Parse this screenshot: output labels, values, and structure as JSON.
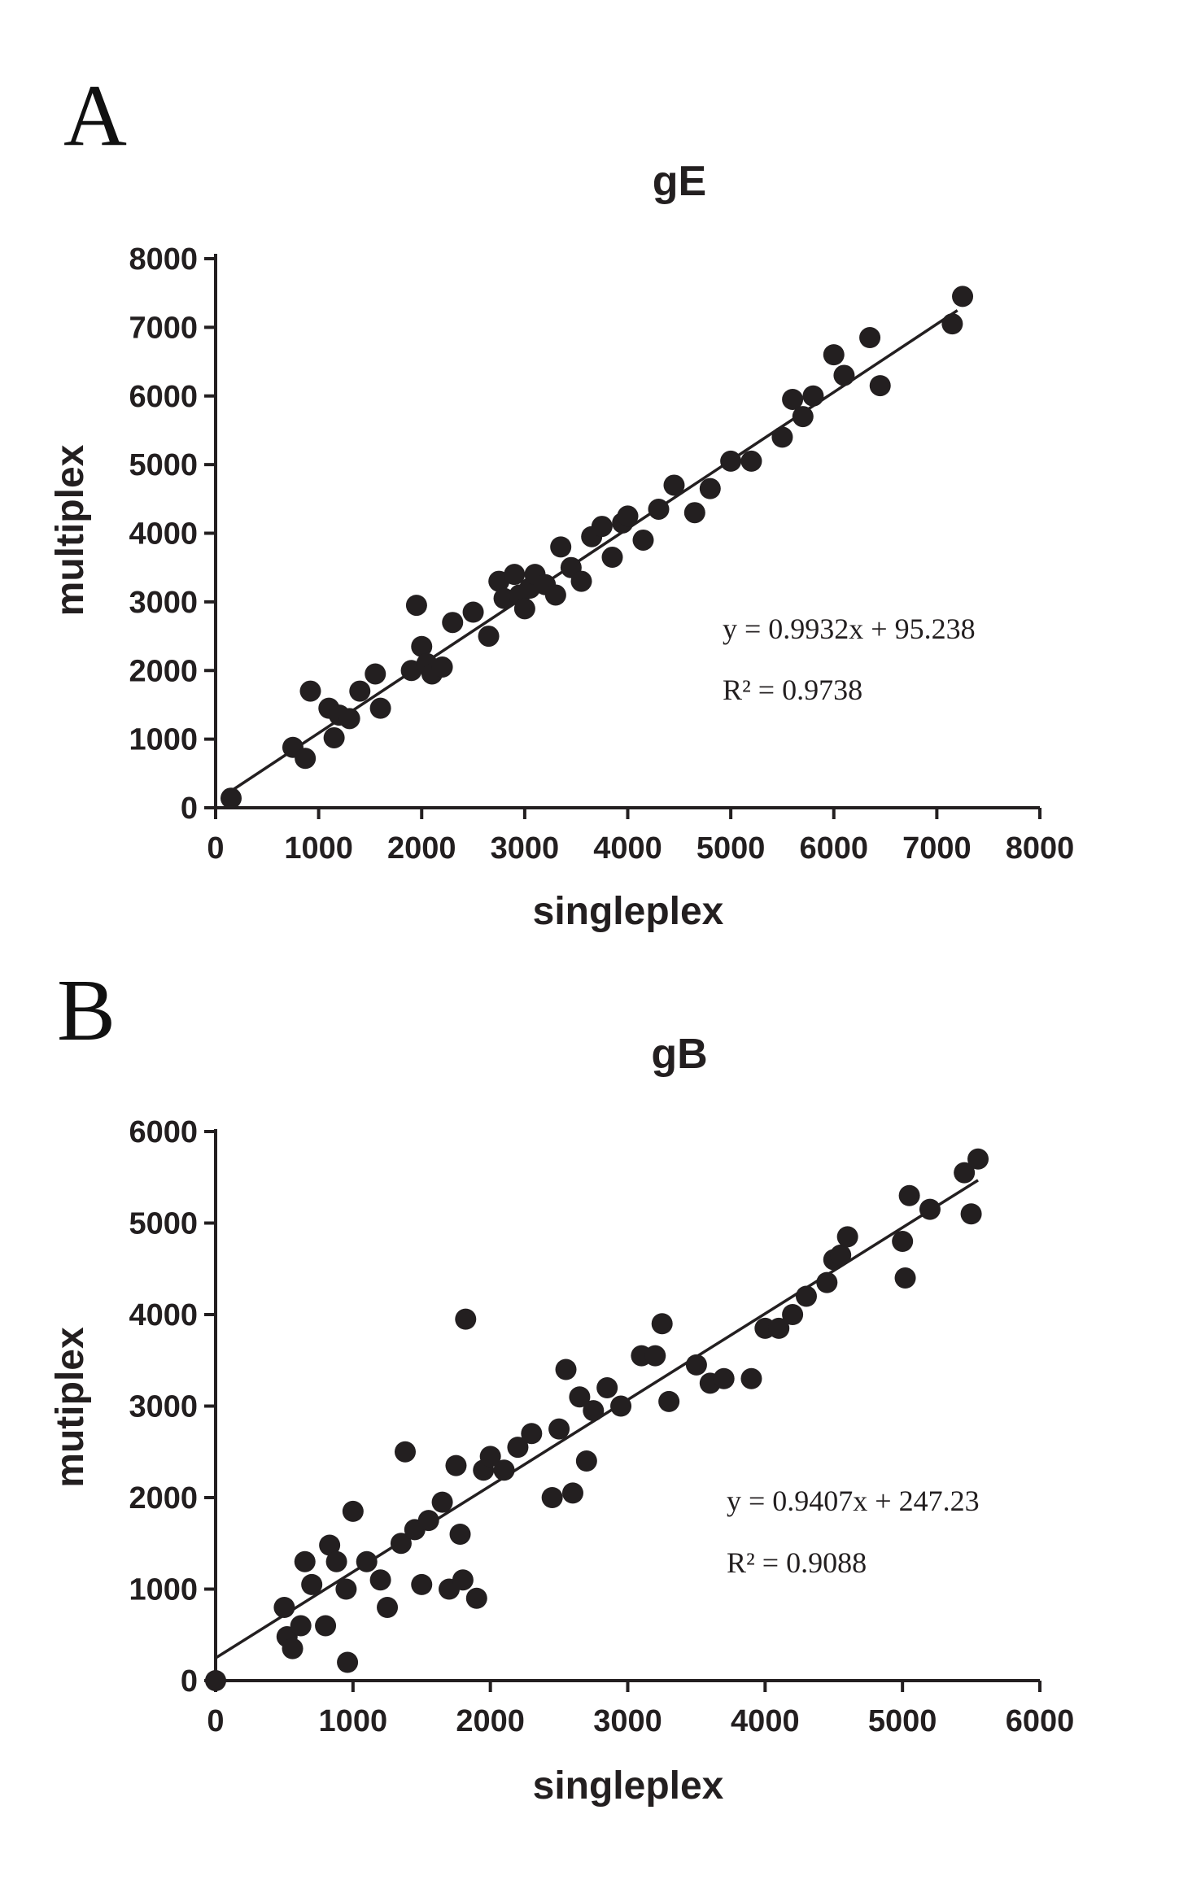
{
  "chart_data": [
    {
      "panel": "A",
      "type": "scatter",
      "title": "gE",
      "xlabel": "singleplex",
      "ylabel": "multiplex",
      "xlim": [
        0,
        8000
      ],
      "ylim": [
        0,
        8000
      ],
      "xticks": [
        0,
        1000,
        2000,
        3000,
        4000,
        5000,
        6000,
        7000,
        8000
      ],
      "yticks": [
        0,
        1000,
        2000,
        3000,
        4000,
        5000,
        6000,
        7000,
        8000
      ],
      "fit": {
        "slope": 0.9932,
        "intercept": 95.238,
        "x_range": [
          150,
          7200
        ]
      },
      "annotations": [
        "y = 0.9932x + 95.238",
        "R² = 0.9738"
      ],
      "points": [
        [
          150,
          140
        ],
        [
          750,
          880
        ],
        [
          870,
          720
        ],
        [
          920,
          1700
        ],
        [
          1100,
          1450
        ],
        [
          1150,
          1020
        ],
        [
          1200,
          1350
        ],
        [
          1300,
          1300
        ],
        [
          1400,
          1700
        ],
        [
          1550,
          1950
        ],
        [
          1600,
          1450
        ],
        [
          1900,
          2000
        ],
        [
          1950,
          2950
        ],
        [
          2000,
          2350
        ],
        [
          2050,
          2100
        ],
        [
          2100,
          1950
        ],
        [
          2200,
          2050
        ],
        [
          2300,
          2700
        ],
        [
          2500,
          2850
        ],
        [
          2650,
          2500
        ],
        [
          2750,
          3300
        ],
        [
          2800,
          3050
        ],
        [
          2900,
          3400
        ],
        [
          2950,
          3100
        ],
        [
          3000,
          2900
        ],
        [
          3050,
          3200
        ],
        [
          3100,
          3400
        ],
        [
          3200,
          3250
        ],
        [
          3300,
          3100
        ],
        [
          3350,
          3800
        ],
        [
          3450,
          3500
        ],
        [
          3550,
          3300
        ],
        [
          3650,
          3950
        ],
        [
          3750,
          4100
        ],
        [
          3850,
          3650
        ],
        [
          3950,
          4150
        ],
        [
          4000,
          4250
        ],
        [
          4150,
          3900
        ],
        [
          4300,
          4350
        ],
        [
          4450,
          4700
        ],
        [
          4650,
          4300
        ],
        [
          4800,
          4650
        ],
        [
          5000,
          5050
        ],
        [
          5200,
          5050
        ],
        [
          5500,
          5400
        ],
        [
          5600,
          5950
        ],
        [
          5700,
          5700
        ],
        [
          5800,
          6000
        ],
        [
          6000,
          6600
        ],
        [
          6100,
          6300
        ],
        [
          6350,
          6850
        ],
        [
          6450,
          6150
        ],
        [
          7150,
          7050
        ],
        [
          7250,
          7450
        ]
      ]
    },
    {
      "panel": "B",
      "type": "scatter",
      "title": "gB",
      "xlabel": "singleplex",
      "ylabel": "mutiplex",
      "xlim": [
        0,
        6000
      ],
      "ylim": [
        0,
        6000
      ],
      "xticks": [
        0,
        1000,
        2000,
        3000,
        4000,
        5000,
        6000
      ],
      "yticks": [
        0,
        1000,
        2000,
        3000,
        4000,
        5000,
        6000
      ],
      "fit": {
        "slope": 0.9407,
        "intercept": 247.23,
        "x_range": [
          0,
          5550
        ]
      },
      "annotations": [
        "y = 0.9407x + 247.23",
        "R² = 0.9088"
      ],
      "points": [
        [
          0,
          0
        ],
        [
          500,
          800
        ],
        [
          520,
          480
        ],
        [
          560,
          350
        ],
        [
          620,
          600
        ],
        [
          650,
          1300
        ],
        [
          700,
          1050
        ],
        [
          800,
          600
        ],
        [
          830,
          1480
        ],
        [
          880,
          1300
        ],
        [
          950,
          1000
        ],
        [
          960,
          200
        ],
        [
          1000,
          1850
        ],
        [
          1100,
          1300
        ],
        [
          1200,
          1100
        ],
        [
          1250,
          800
        ],
        [
          1350,
          1500
        ],
        [
          1380,
          2500
        ],
        [
          1450,
          1650
        ],
        [
          1500,
          1050
        ],
        [
          1550,
          1750
        ],
        [
          1650,
          1950
        ],
        [
          1700,
          1000
        ],
        [
          1750,
          2350
        ],
        [
          1780,
          1600
        ],
        [
          1800,
          1100
        ],
        [
          1820,
          3950
        ],
        [
          1900,
          900
        ],
        [
          1950,
          2300
        ],
        [
          2000,
          2450
        ],
        [
          2100,
          2300
        ],
        [
          2200,
          2550
        ],
        [
          2300,
          2700
        ],
        [
          2450,
          2000
        ],
        [
          2500,
          2750
        ],
        [
          2550,
          3400
        ],
        [
          2600,
          2050
        ],
        [
          2650,
          3100
        ],
        [
          2700,
          2400
        ],
        [
          2750,
          2950
        ],
        [
          2850,
          3200
        ],
        [
          2950,
          3000
        ],
        [
          3100,
          3550
        ],
        [
          3200,
          3550
        ],
        [
          3250,
          3900
        ],
        [
          3300,
          3050
        ],
        [
          3500,
          3450
        ],
        [
          3600,
          3250
        ],
        [
          3700,
          3300
        ],
        [
          3900,
          3300
        ],
        [
          4000,
          3850
        ],
        [
          4100,
          3850
        ],
        [
          4200,
          4000
        ],
        [
          4300,
          4200
        ],
        [
          4450,
          4350
        ],
        [
          4500,
          4600
        ],
        [
          4550,
          4650
        ],
        [
          4600,
          4850
        ],
        [
          5000,
          4800
        ],
        [
          5020,
          4400
        ],
        [
          5050,
          5300
        ],
        [
          5200,
          5150
        ],
        [
          5450,
          5550
        ],
        [
          5500,
          5100
        ],
        [
          5550,
          5700
        ]
      ]
    }
  ]
}
